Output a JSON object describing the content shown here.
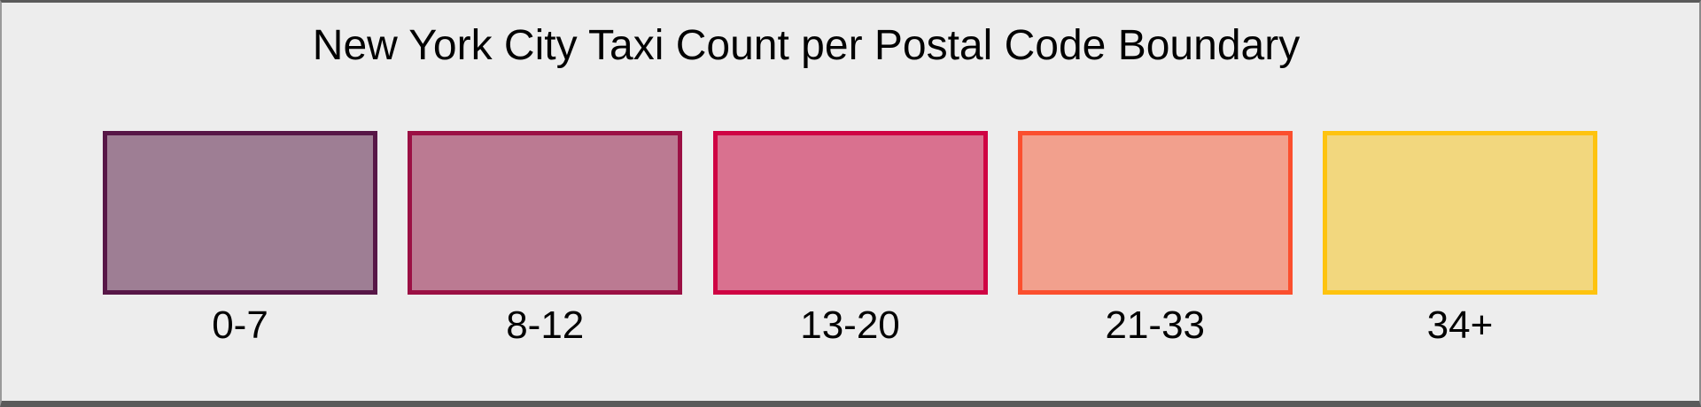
{
  "page": {
    "title": "New York City Taxi Count per Postal Code Boundary",
    "background_color": "#EDEDED",
    "frame_border_color": "#5A5A5A"
  },
  "legend": {
    "items": [
      {
        "label": "0-7",
        "border_color": "#571747",
        "fill_color": "#9E7E94"
      },
      {
        "label": "8-12",
        "border_color": "#9B1044",
        "fill_color": "#BB7A92"
      },
      {
        "label": "13-20",
        "border_color": "#CF0343",
        "fill_color": "#D9718F"
      },
      {
        "label": "21-33",
        "border_color": "#FB4F2E",
        "fill_color": "#F2A08D"
      },
      {
        "label": "34+",
        "border_color": "#FEC30F",
        "fill_color": "#F2D77E"
      }
    ]
  },
  "chart_data": {
    "type": "table",
    "title": "New York City Taxi Count per Postal Code Boundary",
    "description": "Choropleth color-bin legend: taxi count ranges per postal code boundary",
    "categories": [
      "0-7",
      "8-12",
      "13-20",
      "21-33",
      "34+"
    ],
    "bin_edges": [
      0,
      7,
      12,
      20,
      33,
      null
    ],
    "series": [
      {
        "name": "bin_border_colors",
        "values": [
          "#571747",
          "#9B1044",
          "#CF0343",
          "#FB4F2E",
          "#FEC30F"
        ]
      },
      {
        "name": "bin_fill_colors",
        "values": [
          "#9E7E94",
          "#BB7A92",
          "#D9718F",
          "#F2A08D",
          "#F2D77E"
        ]
      }
    ],
    "legend_position": "center",
    "grid": false
  }
}
